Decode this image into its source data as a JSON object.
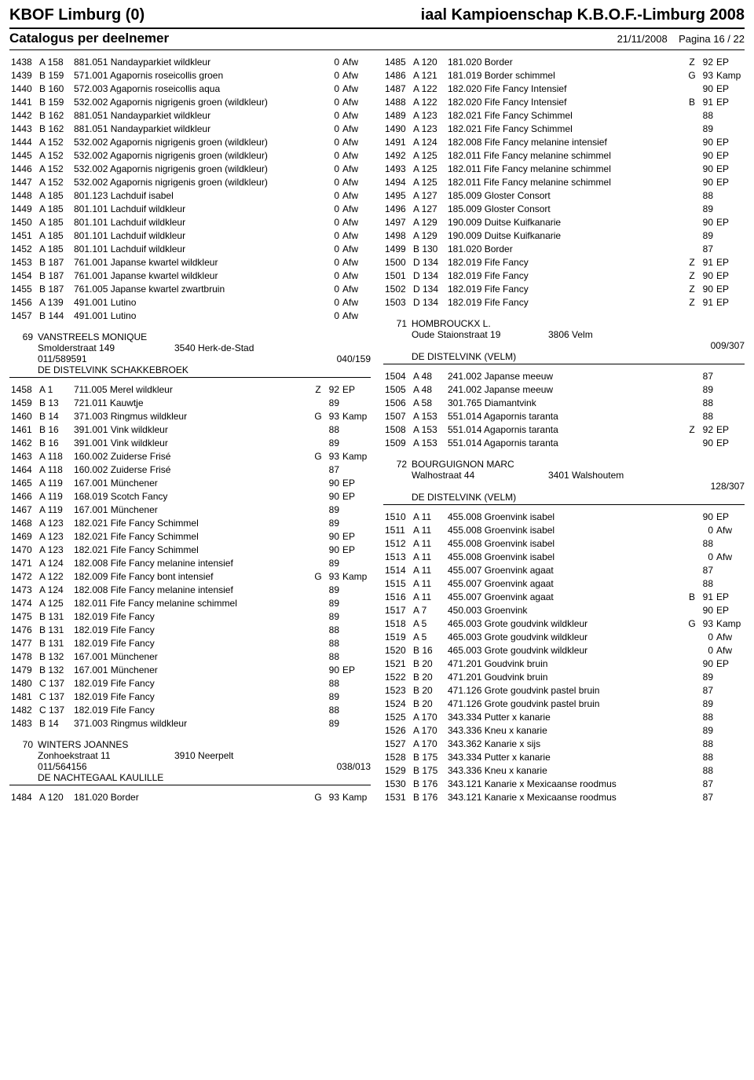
{
  "header": {
    "left": "KBOF Limburg (0)",
    "right": "iaal Kampioenschap K.B.O.F.-Limburg 2008"
  },
  "subheader": {
    "left": "Catalogus per deelnemer",
    "date": "21/11/2008",
    "page": "Pagina 16 / 22"
  },
  "left_top": [
    [
      "1438",
      "A 158",
      "881.051 Nandayparkiet wildkleur",
      "",
      "0",
      "Afw"
    ],
    [
      "1439",
      "B 159",
      "571.001 Agapornis roseicollis groen",
      "",
      "0",
      "Afw"
    ],
    [
      "1440",
      "B 160",
      "572.003 Agapornis roseicollis aqua",
      "",
      "0",
      "Afw"
    ],
    [
      "1441",
      "B 159",
      "532.002 Agapornis nigrigenis groen (wildkleur)",
      "",
      "0",
      "Afw"
    ],
    [
      "1442",
      "B 162",
      "881.051 Nandayparkiet wildkleur",
      "",
      "0",
      "Afw"
    ],
    [
      "1443",
      "B 162",
      "881.051 Nandayparkiet wildkleur",
      "",
      "0",
      "Afw"
    ],
    [
      "1444",
      "A 152",
      "532.002 Agapornis nigrigenis groen (wildkleur)",
      "",
      "0",
      "Afw"
    ],
    [
      "1445",
      "A 152",
      "532.002 Agapornis nigrigenis groen (wildkleur)",
      "",
      "0",
      "Afw"
    ],
    [
      "1446",
      "A 152",
      "532.002 Agapornis nigrigenis groen (wildkleur)",
      "",
      "0",
      "Afw"
    ],
    [
      "1447",
      "A 152",
      "532.002 Agapornis nigrigenis groen (wildkleur)",
      "",
      "0",
      "Afw"
    ],
    [
      "1448",
      "A 185",
      "801.123 Lachduif isabel",
      "",
      "0",
      "Afw"
    ],
    [
      "1449",
      "A 185",
      "801.101 Lachduif wildkleur",
      "",
      "0",
      "Afw"
    ],
    [
      "1450",
      "A 185",
      "801.101 Lachduif wildkleur",
      "",
      "0",
      "Afw"
    ],
    [
      "1451",
      "A 185",
      "801.101 Lachduif wildkleur",
      "",
      "0",
      "Afw"
    ],
    [
      "1452",
      "A 185",
      "801.101 Lachduif wildkleur",
      "",
      "0",
      "Afw"
    ],
    [
      "1453",
      "B 187",
      "761.001 Japanse kwartel wildkleur",
      "",
      "0",
      "Afw"
    ],
    [
      "1454",
      "B 187",
      "761.001 Japanse kwartel wildkleur",
      "",
      "0",
      "Afw"
    ],
    [
      "1455",
      "B 187",
      "761.005 Japanse kwartel zwartbruin",
      "",
      "0",
      "Afw"
    ],
    [
      "1456",
      "A 139",
      "491.001 Lutino",
      "",
      "0",
      "Afw"
    ],
    [
      "1457",
      "B 144",
      "491.001 Lutino",
      "",
      "0",
      "Afw"
    ]
  ],
  "p69": {
    "num": "69",
    "name": "VANSTREELS MONIQUE",
    "addr": "Smolderstraat 149",
    "city": "3540 Herk-de-Stad",
    "phone": "011/589591",
    "code": "040/159",
    "club": "DE DISTELVINK SCHAKKEBROEK",
    "rows": [
      [
        "1458",
        "A 1",
        "711.005 Merel wildkleur",
        "Z",
        "92",
        "EP"
      ],
      [
        "1459",
        "B 13",
        "721.011 Kauwtje",
        "",
        "89",
        ""
      ],
      [
        "1460",
        "B 14",
        "371.003 Ringmus wildkleur",
        "G",
        "93",
        "Kamp"
      ],
      [
        "1461",
        "B 16",
        "391.001 Vink wildkleur",
        "",
        "88",
        ""
      ],
      [
        "1462",
        "B 16",
        "391.001 Vink wildkleur",
        "",
        "89",
        ""
      ],
      [
        "1463",
        "A 118",
        "160.002 Zuiderse Frisé",
        "G",
        "93",
        "Kamp"
      ],
      [
        "1464",
        "A 118",
        "160.002 Zuiderse Frisé",
        "",
        "87",
        ""
      ],
      [
        "1465",
        "A 119",
        "167.001 Münchener",
        "",
        "90",
        "EP"
      ],
      [
        "1466",
        "A 119",
        "168.019 Scotch Fancy",
        "",
        "90",
        "EP"
      ],
      [
        "1467",
        "A 119",
        "167.001 Münchener",
        "",
        "89",
        ""
      ],
      [
        "1468",
        "A 123",
        "182.021 Fife Fancy Schimmel",
        "",
        "89",
        ""
      ],
      [
        "1469",
        "A 123",
        "182.021 Fife Fancy Schimmel",
        "",
        "90",
        "EP"
      ],
      [
        "1470",
        "A 123",
        "182.021 Fife Fancy Schimmel",
        "",
        "90",
        "EP"
      ],
      [
        "1471",
        "A 124",
        "182.008 Fife Fancy melanine intensief",
        "",
        "89",
        ""
      ],
      [
        "1472",
        "A 122",
        "182.009 Fife Fancy bont intensief",
        "G",
        "93",
        "Kamp"
      ],
      [
        "1473",
        "A 124",
        "182.008 Fife Fancy melanine intensief",
        "",
        "89",
        ""
      ],
      [
        "1474",
        "A 125",
        "182.011 Fife Fancy melanine schimmel",
        "",
        "89",
        ""
      ],
      [
        "1475",
        "B 131",
        "182.019 Fife Fancy",
        "",
        "89",
        ""
      ],
      [
        "1476",
        "B 131",
        "182.019 Fife Fancy",
        "",
        "88",
        ""
      ],
      [
        "1477",
        "B 131",
        "182.019 Fife Fancy",
        "",
        "88",
        ""
      ],
      [
        "1478",
        "B 132",
        "167.001 Münchener",
        "",
        "88",
        ""
      ],
      [
        "1479",
        "B 132",
        "167.001 Münchener",
        "",
        "90",
        "EP"
      ],
      [
        "1480",
        "C 137",
        "182.019 Fife Fancy",
        "",
        "88",
        ""
      ],
      [
        "1481",
        "C 137",
        "182.019 Fife Fancy",
        "",
        "89",
        ""
      ],
      [
        "1482",
        "C 137",
        "182.019 Fife Fancy",
        "",
        "88",
        ""
      ],
      [
        "1483",
        "B 14",
        "371.003 Ringmus wildkleur",
        "",
        "89",
        ""
      ]
    ]
  },
  "p70": {
    "num": "70",
    "name": "WINTERS JOANNES",
    "addr": "Zonhoekstraat 11",
    "city": "3910 Neerpelt",
    "phone": "011/564156",
    "code": "038/013",
    "club": "DE NACHTEGAAL KAULILLE",
    "rows": [
      [
        "1484",
        "A 120",
        "181.020 Border",
        "G",
        "93",
        "Kamp"
      ]
    ]
  },
  "right_top": [
    [
      "1485",
      "A 120",
      "181.020 Border",
      "Z",
      "92",
      "EP"
    ],
    [
      "1486",
      "A 121",
      "181.019 Border schimmel",
      "G",
      "93",
      "Kamp"
    ],
    [
      "1487",
      "A 122",
      "182.020 Fife Fancy Intensief",
      "",
      "90",
      "EP"
    ],
    [
      "1488",
      "A 122",
      "182.020 Fife Fancy Intensief",
      "B",
      "91",
      "EP"
    ],
    [
      "1489",
      "A 123",
      "182.021 Fife Fancy Schimmel",
      "",
      "88",
      ""
    ],
    [
      "1490",
      "A 123",
      "182.021 Fife Fancy Schimmel",
      "",
      "89",
      ""
    ],
    [
      "1491",
      "A 124",
      "182.008 Fife Fancy melanine intensief",
      "",
      "90",
      "EP"
    ],
    [
      "1492",
      "A 125",
      "182.011 Fife Fancy melanine schimmel",
      "",
      "90",
      "EP"
    ],
    [
      "1493",
      "A 125",
      "182.011 Fife Fancy melanine schimmel",
      "",
      "90",
      "EP"
    ],
    [
      "1494",
      "A 125",
      "182.011 Fife Fancy melanine schimmel",
      "",
      "90",
      "EP"
    ],
    [
      "1495",
      "A 127",
      "185.009 Gloster Consort",
      "",
      "88",
      ""
    ],
    [
      "1496",
      "A 127",
      "185.009 Gloster Consort",
      "",
      "89",
      ""
    ],
    [
      "1497",
      "A 129",
      "190.009 Duitse Kuifkanarie",
      "",
      "90",
      "EP"
    ],
    [
      "1498",
      "A 129",
      "190.009 Duitse Kuifkanarie",
      "",
      "89",
      ""
    ],
    [
      "1499",
      "B 130",
      "181.020 Border",
      "",
      "87",
      ""
    ],
    [
      "1500",
      "D 134",
      "182.019 Fife Fancy",
      "Z",
      "91",
      "EP"
    ],
    [
      "1501",
      "D 134",
      "182.019 Fife Fancy",
      "Z",
      "90",
      "EP"
    ],
    [
      "1502",
      "D 134",
      "182.019 Fife Fancy",
      "Z",
      "90",
      "EP"
    ],
    [
      "1503",
      "D 134",
      "182.019 Fife Fancy",
      "Z",
      "91",
      "EP"
    ]
  ],
  "p71": {
    "num": "71",
    "name": "HOMBROUCKX L.",
    "addr": "Oude Staionstraat 19",
    "city": "3806 Velm",
    "phone": "",
    "code": "009/307",
    "club": "DE DISTELVINK (VELM)",
    "rows": [
      [
        "1504",
        "A 48",
        "241.002 Japanse meeuw",
        "",
        "87",
        ""
      ],
      [
        "1505",
        "A 48",
        "241.002 Japanse meeuw",
        "",
        "89",
        ""
      ],
      [
        "1506",
        "A 58",
        "301.765 Diamantvink",
        "",
        "88",
        ""
      ],
      [
        "1507",
        "A 153",
        "551.014 Agapornis taranta",
        "",
        "88",
        ""
      ],
      [
        "1508",
        "A 153",
        "551.014 Agapornis taranta",
        "Z",
        "92",
        "EP"
      ],
      [
        "1509",
        "A 153",
        "551.014 Agapornis taranta",
        "",
        "90",
        "EP"
      ]
    ]
  },
  "p72": {
    "num": "72",
    "name": "BOURGUIGNON MARC",
    "addr": "Walhostraat 44",
    "city": "3401 Walshoutem",
    "phone": "",
    "code": "128/307",
    "club": "DE DISTELVINK (VELM)",
    "rows": [
      [
        "1510",
        "A 11",
        "455.008 Groenvink isabel",
        "",
        "90",
        "EP"
      ],
      [
        "1511",
        "A 11",
        "455.008 Groenvink isabel",
        "",
        "0",
        "Afw"
      ],
      [
        "1512",
        "A 11",
        "455.008 Groenvink isabel",
        "",
        "88",
        ""
      ],
      [
        "1513",
        "A 11",
        "455.008 Groenvink isabel",
        "",
        "0",
        "Afw"
      ],
      [
        "1514",
        "A 11",
        "455.007 Groenvink agaat",
        "",
        "87",
        ""
      ],
      [
        "1515",
        "A 11",
        "455.007 Groenvink agaat",
        "",
        "88",
        ""
      ],
      [
        "1516",
        "A 11",
        "455.007 Groenvink agaat",
        "B",
        "91",
        "EP"
      ],
      [
        "1517",
        "A 7",
        "450.003 Groenvink",
        "",
        "90",
        "EP"
      ],
      [
        "1518",
        "A 5",
        "465.003 Grote goudvink wildkleur",
        "G",
        "93",
        "Kamp"
      ],
      [
        "1519",
        "A 5",
        "465.003 Grote goudvink wildkleur",
        "",
        "0",
        "Afw"
      ],
      [
        "1520",
        "B 16",
        "465.003 Grote goudvink wildkleur",
        "",
        "0",
        "Afw"
      ],
      [
        "1521",
        "B 20",
        "471.201 Goudvink bruin",
        "",
        "90",
        "EP"
      ],
      [
        "1522",
        "B 20",
        "471.201 Goudvink bruin",
        "",
        "89",
        ""
      ],
      [
        "1523",
        "B 20",
        "471.126 Grote goudvink pastel bruin",
        "",
        "87",
        ""
      ],
      [
        "1524",
        "B 20",
        "471.126 Grote goudvink pastel bruin",
        "",
        "89",
        ""
      ],
      [
        "1525",
        "A 170",
        "343.334 Putter x kanarie",
        "",
        "88",
        ""
      ],
      [
        "1526",
        "A 170",
        "343.336 Kneu x kanarie",
        "",
        "89",
        ""
      ],
      [
        "1527",
        "A 170",
        "343.362 Kanarie x sijs",
        "",
        "88",
        ""
      ],
      [
        "1528",
        "B 175",
        "343.334 Putter x kanarie",
        "",
        "88",
        ""
      ],
      [
        "1529",
        "B 175",
        "343.336 Kneu x kanarie",
        "",
        "88",
        ""
      ],
      [
        "1530",
        "B 176",
        "343.121 Kanarie x Mexicaanse roodmus",
        "",
        "87",
        ""
      ],
      [
        "1531",
        "B 176",
        "343.121 Kanarie x Mexicaanse roodmus",
        "",
        "87",
        ""
      ]
    ]
  }
}
